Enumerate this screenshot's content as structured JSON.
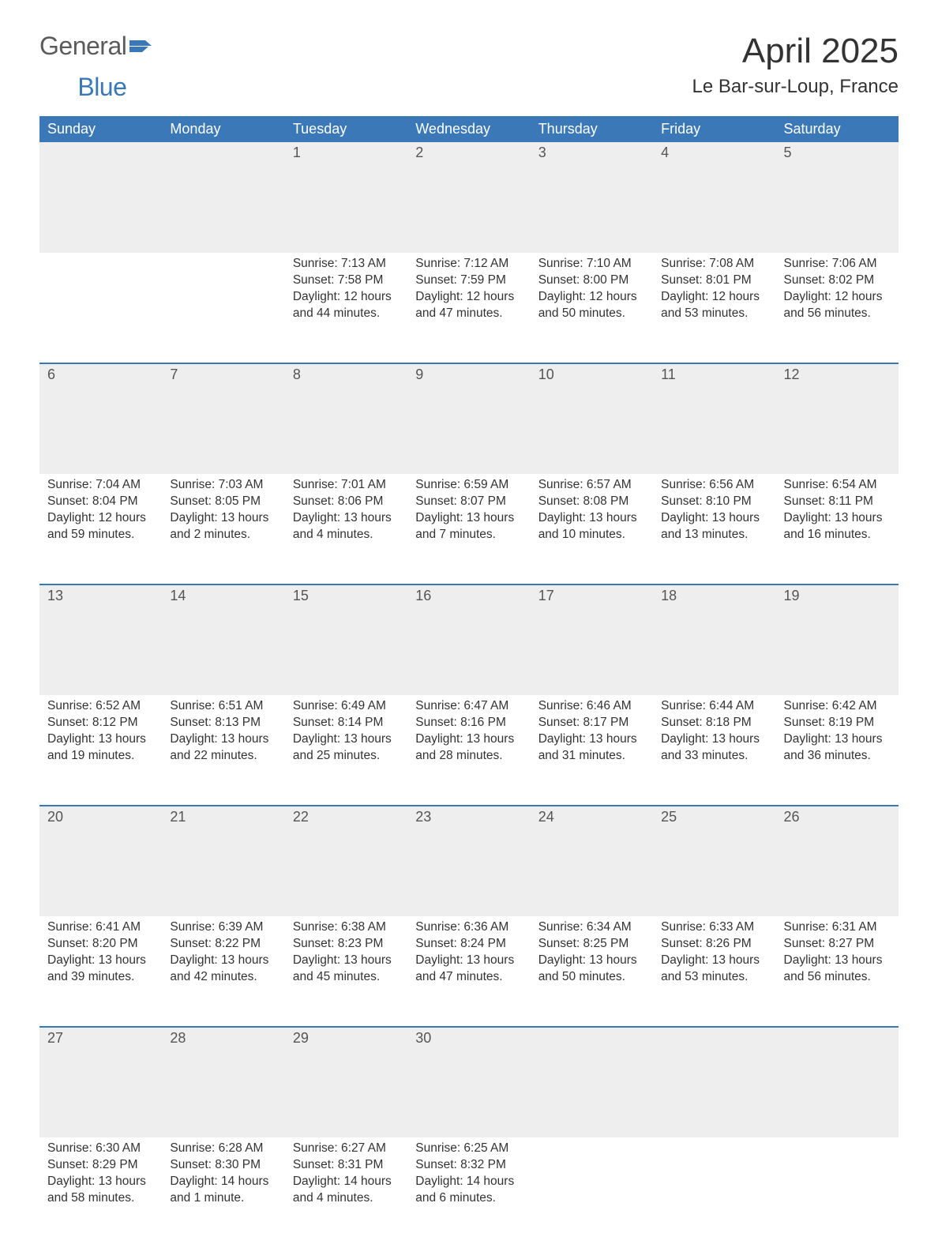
{
  "logo": {
    "general": "General",
    "blue": "Blue"
  },
  "colors": {
    "header_bg": "#3a78b8",
    "header_text": "#ffffff",
    "daynum_bg": "#eeeeee",
    "body_text": "#333333",
    "week_border": "#3a78b8",
    "logo_general": "#5a5a5a",
    "logo_blue": "#3a78b8",
    "page_bg": "#ffffff"
  },
  "title": "April 2025",
  "location": "Le Bar-sur-Loup, France",
  "weekdays": [
    "Sunday",
    "Monday",
    "Tuesday",
    "Wednesday",
    "Thursday",
    "Friday",
    "Saturday"
  ],
  "weeks": [
    [
      null,
      null,
      {
        "n": "1",
        "sunrise": "Sunrise: 7:13 AM",
        "sunset": "Sunset: 7:58 PM",
        "daylight": "Daylight: 12 hours and 44 minutes."
      },
      {
        "n": "2",
        "sunrise": "Sunrise: 7:12 AM",
        "sunset": "Sunset: 7:59 PM",
        "daylight": "Daylight: 12 hours and 47 minutes."
      },
      {
        "n": "3",
        "sunrise": "Sunrise: 7:10 AM",
        "sunset": "Sunset: 8:00 PM",
        "daylight": "Daylight: 12 hours and 50 minutes."
      },
      {
        "n": "4",
        "sunrise": "Sunrise: 7:08 AM",
        "sunset": "Sunset: 8:01 PM",
        "daylight": "Daylight: 12 hours and 53 minutes."
      },
      {
        "n": "5",
        "sunrise": "Sunrise: 7:06 AM",
        "sunset": "Sunset: 8:02 PM",
        "daylight": "Daylight: 12 hours and 56 minutes."
      }
    ],
    [
      {
        "n": "6",
        "sunrise": "Sunrise: 7:04 AM",
        "sunset": "Sunset: 8:04 PM",
        "daylight": "Daylight: 12 hours and 59 minutes."
      },
      {
        "n": "7",
        "sunrise": "Sunrise: 7:03 AM",
        "sunset": "Sunset: 8:05 PM",
        "daylight": "Daylight: 13 hours and 2 minutes."
      },
      {
        "n": "8",
        "sunrise": "Sunrise: 7:01 AM",
        "sunset": "Sunset: 8:06 PM",
        "daylight": "Daylight: 13 hours and 4 minutes."
      },
      {
        "n": "9",
        "sunrise": "Sunrise: 6:59 AM",
        "sunset": "Sunset: 8:07 PM",
        "daylight": "Daylight: 13 hours and 7 minutes."
      },
      {
        "n": "10",
        "sunrise": "Sunrise: 6:57 AM",
        "sunset": "Sunset: 8:08 PM",
        "daylight": "Daylight: 13 hours and 10 minutes."
      },
      {
        "n": "11",
        "sunrise": "Sunrise: 6:56 AM",
        "sunset": "Sunset: 8:10 PM",
        "daylight": "Daylight: 13 hours and 13 minutes."
      },
      {
        "n": "12",
        "sunrise": "Sunrise: 6:54 AM",
        "sunset": "Sunset: 8:11 PM",
        "daylight": "Daylight: 13 hours and 16 minutes."
      }
    ],
    [
      {
        "n": "13",
        "sunrise": "Sunrise: 6:52 AM",
        "sunset": "Sunset: 8:12 PM",
        "daylight": "Daylight: 13 hours and 19 minutes."
      },
      {
        "n": "14",
        "sunrise": "Sunrise: 6:51 AM",
        "sunset": "Sunset: 8:13 PM",
        "daylight": "Daylight: 13 hours and 22 minutes."
      },
      {
        "n": "15",
        "sunrise": "Sunrise: 6:49 AM",
        "sunset": "Sunset: 8:14 PM",
        "daylight": "Daylight: 13 hours and 25 minutes."
      },
      {
        "n": "16",
        "sunrise": "Sunrise: 6:47 AM",
        "sunset": "Sunset: 8:16 PM",
        "daylight": "Daylight: 13 hours and 28 minutes."
      },
      {
        "n": "17",
        "sunrise": "Sunrise: 6:46 AM",
        "sunset": "Sunset: 8:17 PM",
        "daylight": "Daylight: 13 hours and 31 minutes."
      },
      {
        "n": "18",
        "sunrise": "Sunrise: 6:44 AM",
        "sunset": "Sunset: 8:18 PM",
        "daylight": "Daylight: 13 hours and 33 minutes."
      },
      {
        "n": "19",
        "sunrise": "Sunrise: 6:42 AM",
        "sunset": "Sunset: 8:19 PM",
        "daylight": "Daylight: 13 hours and 36 minutes."
      }
    ],
    [
      {
        "n": "20",
        "sunrise": "Sunrise: 6:41 AM",
        "sunset": "Sunset: 8:20 PM",
        "daylight": "Daylight: 13 hours and 39 minutes."
      },
      {
        "n": "21",
        "sunrise": "Sunrise: 6:39 AM",
        "sunset": "Sunset: 8:22 PM",
        "daylight": "Daylight: 13 hours and 42 minutes."
      },
      {
        "n": "22",
        "sunrise": "Sunrise: 6:38 AM",
        "sunset": "Sunset: 8:23 PM",
        "daylight": "Daylight: 13 hours and 45 minutes."
      },
      {
        "n": "23",
        "sunrise": "Sunrise: 6:36 AM",
        "sunset": "Sunset: 8:24 PM",
        "daylight": "Daylight: 13 hours and 47 minutes."
      },
      {
        "n": "24",
        "sunrise": "Sunrise: 6:34 AM",
        "sunset": "Sunset: 8:25 PM",
        "daylight": "Daylight: 13 hours and 50 minutes."
      },
      {
        "n": "25",
        "sunrise": "Sunrise: 6:33 AM",
        "sunset": "Sunset: 8:26 PM",
        "daylight": "Daylight: 13 hours and 53 minutes."
      },
      {
        "n": "26",
        "sunrise": "Sunrise: 6:31 AM",
        "sunset": "Sunset: 8:27 PM",
        "daylight": "Daylight: 13 hours and 56 minutes."
      }
    ],
    [
      {
        "n": "27",
        "sunrise": "Sunrise: 6:30 AM",
        "sunset": "Sunset: 8:29 PM",
        "daylight": "Daylight: 13 hours and 58 minutes."
      },
      {
        "n": "28",
        "sunrise": "Sunrise: 6:28 AM",
        "sunset": "Sunset: 8:30 PM",
        "daylight": "Daylight: 14 hours and 1 minute."
      },
      {
        "n": "29",
        "sunrise": "Sunrise: 6:27 AM",
        "sunset": "Sunset: 8:31 PM",
        "daylight": "Daylight: 14 hours and 4 minutes."
      },
      {
        "n": "30",
        "sunrise": "Sunrise: 6:25 AM",
        "sunset": "Sunset: 8:32 PM",
        "daylight": "Daylight: 14 hours and 6 minutes."
      },
      null,
      null,
      null
    ]
  ]
}
